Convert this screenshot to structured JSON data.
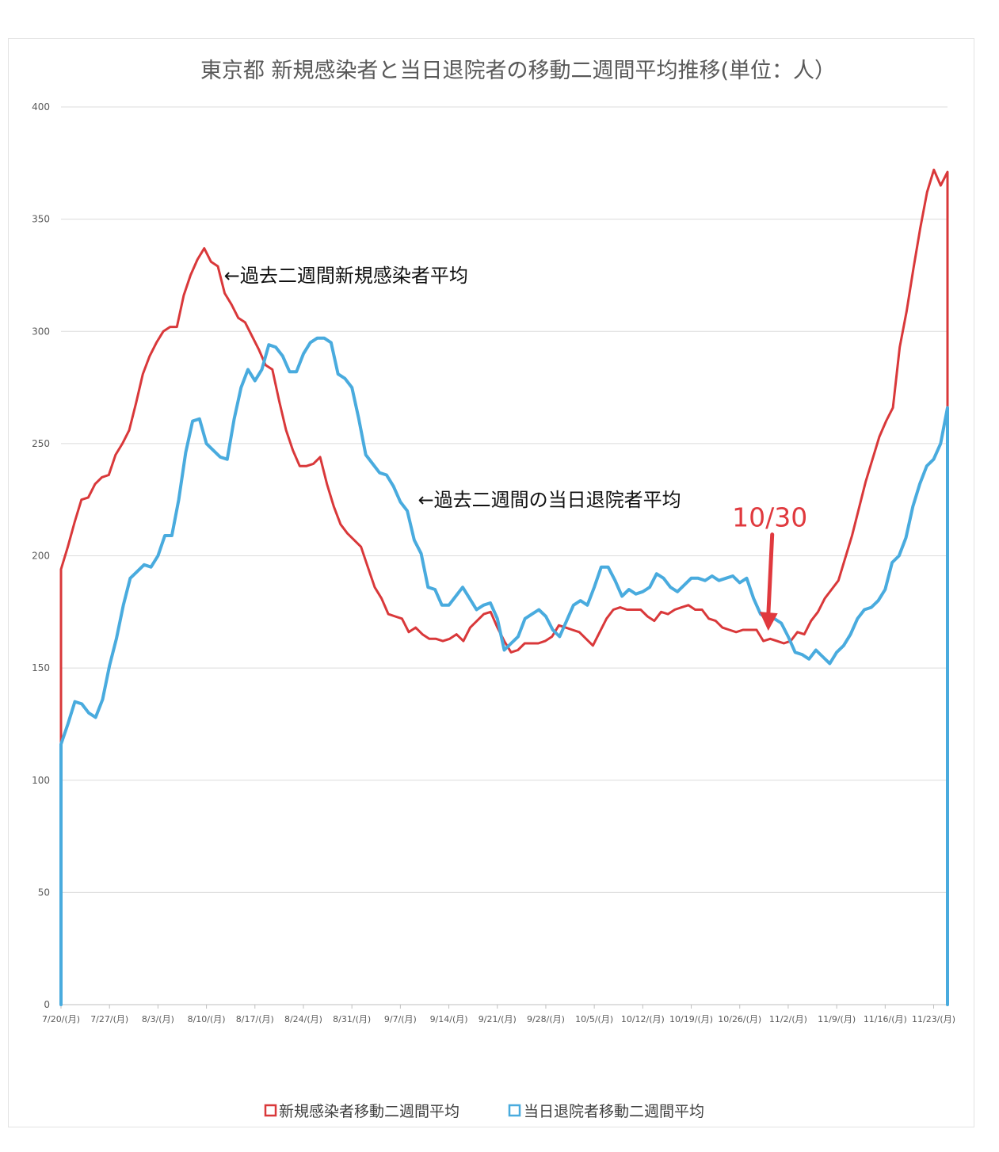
{
  "chart_data": {
    "type": "line",
    "title": "東京都 新規感染者と当日退院者の移動二週間平均推移(単位：人）",
    "xlabel": "",
    "ylabel": "",
    "ylim": [
      0,
      400
    ],
    "yticks": [
      "0",
      "50",
      "100",
      "150",
      "200",
      "250",
      "300",
      "350",
      "400"
    ],
    "grid": true,
    "legend_position": "bottom",
    "x_tick_labels": [
      "7/20/(月)",
      "7/27/(月)",
      "8/3/(月)",
      "8/10/(月)",
      "8/17/(月)",
      "8/24/(月)",
      "8/31/(月)",
      "9/7/(月)",
      "9/14/(月)",
      "9/21/(月)",
      "9/28/(月)",
      "10/5/(月)",
      "10/12/(月)",
      "10/19/(月)",
      "10/26/(月)",
      "11/2/(月)",
      "11/9/(月)",
      "11/16/(月)",
      "11/23/(月)"
    ],
    "x_start": "2020-07-20",
    "x_end": "2020-11-25",
    "series": [
      {
        "name": "新規感染者移動二週間平均",
        "color": "#d9383a",
        "values": [
          194,
          204,
          215,
          225,
          226,
          232,
          235,
          236,
          245,
          250,
          256,
          268,
          281,
          289,
          295,
          300,
          302,
          302,
          316,
          325,
          332,
          337,
          331,
          329,
          317,
          312,
          306,
          304,
          298,
          292,
          285,
          283,
          269,
          256,
          247,
          240,
          240,
          241,
          244,
          232,
          222,
          214,
          210,
          207,
          204,
          195,
          186,
          181,
          174,
          173,
          172,
          166,
          168,
          165,
          163,
          163,
          162,
          163,
          165,
          162,
          168,
          171,
          174,
          175,
          168,
          162,
          157,
          158,
          161,
          161,
          161,
          162,
          164,
          169,
          168,
          167,
          166,
          163,
          160,
          166,
          172,
          176,
          177,
          176,
          176,
          176,
          173,
          171,
          175,
          174,
          176,
          177,
          178,
          176,
          176,
          172,
          171,
          168,
          167,
          166,
          167,
          167,
          167,
          162,
          163,
          162,
          161,
          162,
          166,
          165,
          171,
          175,
          181,
          185,
          189,
          199,
          209,
          221,
          233,
          243,
          253,
          260,
          266,
          293,
          309,
          328,
          346,
          362,
          372,
          365,
          371
        ],
        "end_drop": 265
      },
      {
        "name": "当日退院者移動二週間平均",
        "color": "#49abde",
        "values": [
          116,
          125,
          135,
          134,
          130,
          128,
          136,
          151,
          163,
          178,
          190,
          193,
          196,
          195,
          200,
          209,
          209,
          225,
          246,
          260,
          261,
          250,
          247,
          244,
          243,
          261,
          275,
          283,
          278,
          283,
          294,
          293,
          289,
          282,
          282,
          290,
          295,
          297,
          297,
          295,
          281,
          279,
          275,
          261,
          245,
          241,
          237,
          236,
          231,
          224,
          220,
          207,
          201,
          186,
          185,
          178,
          178,
          182,
          186,
          181,
          176,
          178,
          179,
          172,
          158,
          161,
          164,
          172,
          174,
          176,
          173,
          167,
          164,
          171,
          178,
          180,
          178,
          186,
          195,
          195,
          189,
          182,
          185,
          183,
          184,
          186,
          192,
          190,
          186,
          184,
          187,
          190,
          190,
          189,
          191,
          189,
          190,
          191,
          188,
          190,
          181,
          174,
          172,
          172,
          170,
          164,
          157,
          156,
          154,
          158,
          155,
          152,
          157,
          160,
          165,
          172,
          176,
          177,
          180,
          185,
          197,
          200,
          208,
          222,
          232,
          240,
          243,
          250,
          266
        ],
        "end_drop": 0
      }
    ],
    "annotations": [
      {
        "text": "←過去二週間新規感染者平均",
        "x_date": "8/17",
        "y": 322
      },
      {
        "text": "←過去二週間の当日退院者平均",
        "x_date": "9/14",
        "y": 222
      },
      {
        "text": "10/30",
        "x_date": "10/30",
        "y": 213,
        "color": "#e0393e",
        "arrow_to_y": 168
      }
    ]
  }
}
